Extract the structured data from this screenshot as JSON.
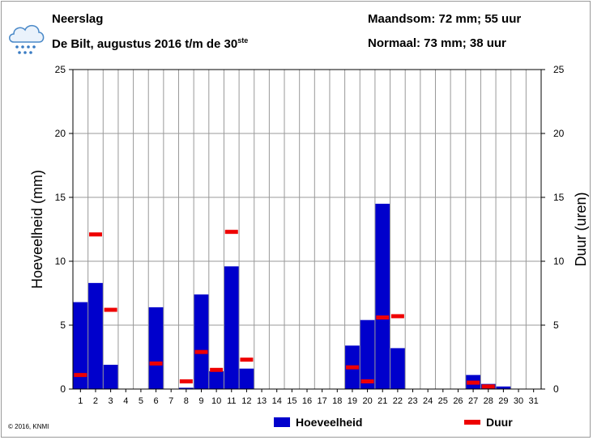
{
  "header": {
    "title": "Neerslag",
    "subtitle_main": "De Bilt, augustus 2016 t/m de 30",
    "subtitle_sup": "ste",
    "month_sum": "Maandsom: 72 mm; 55 uur",
    "normal": "Normaal: 73 mm; 38 uur"
  },
  "footer": {
    "copyright": "© 2016, KNMI"
  },
  "colors": {
    "bar": "#0000cc",
    "duration": "#ee0000",
    "grid": "#999999"
  },
  "icon": "rain-cloud-icon",
  "chart_data": {
    "type": "bar",
    "x": [
      1,
      2,
      3,
      4,
      5,
      6,
      7,
      8,
      9,
      10,
      11,
      12,
      13,
      14,
      15,
      16,
      17,
      18,
      19,
      20,
      21,
      22,
      23,
      24,
      25,
      26,
      27,
      28,
      29,
      30,
      31
    ],
    "xticks": [
      "1",
      "2",
      "3",
      "4",
      "5",
      "6",
      "7",
      "8",
      "9",
      "10",
      "11",
      "12",
      "13",
      "14",
      "15",
      "16",
      "17",
      "18",
      "19",
      "20",
      "21",
      "22",
      "23",
      "24",
      "25",
      "26",
      "27",
      "28",
      "29",
      "30",
      "31"
    ],
    "series": [
      {
        "name": "Hoeveelheid",
        "axis": "left",
        "style": "bar",
        "values": [
          6.8,
          8.3,
          1.9,
          0,
          0,
          6.4,
          0,
          0.1,
          7.4,
          1.4,
          9.6,
          1.6,
          0,
          0,
          0,
          0,
          0,
          0,
          3.4,
          5.4,
          14.5,
          3.2,
          0,
          0,
          0,
          0,
          1.1,
          0.4,
          0.2,
          0,
          null
        ]
      },
      {
        "name": "Duur",
        "axis": "right",
        "style": "dash",
        "values": [
          1.1,
          12.1,
          6.2,
          null,
          null,
          2.0,
          null,
          0.6,
          2.9,
          1.5,
          12.3,
          2.3,
          null,
          null,
          null,
          null,
          null,
          null,
          1.7,
          0.6,
          5.6,
          5.7,
          null,
          null,
          null,
          null,
          0.5,
          0.2,
          null,
          null,
          null
        ]
      }
    ],
    "ylabel": "Hoeveelheid (mm)",
    "y2label": "Duur (uren)",
    "ylim": [
      0,
      25
    ],
    "y2lim": [
      0,
      25
    ],
    "yticks": [
      0,
      5,
      10,
      15,
      20,
      25
    ],
    "grid": true,
    "legend": "bottom"
  }
}
